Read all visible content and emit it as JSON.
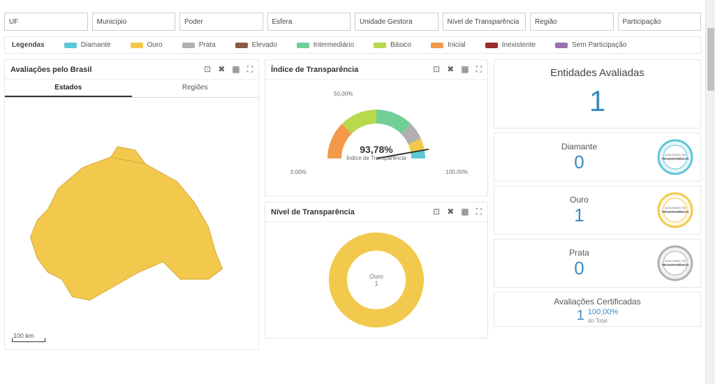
{
  "filters": [
    {
      "label": "UF"
    },
    {
      "label": "Município"
    },
    {
      "label": "Poder"
    },
    {
      "label": "Esfera"
    },
    {
      "label": "Unidade Gestora"
    },
    {
      "label": "Nível de Transparência"
    },
    {
      "label": "Região"
    },
    {
      "label": "Participação"
    }
  ],
  "legend": {
    "title": "Legendas",
    "items": [
      {
        "label": "Diamante",
        "color": "#5bc8d6"
      },
      {
        "label": "Ouro",
        "color": "#f2c94c"
      },
      {
        "label": "Prata",
        "color": "#b0b0b0"
      },
      {
        "label": "Elevado",
        "color": "#8b5a44"
      },
      {
        "label": "Intermediário",
        "color": "#6fcf97"
      },
      {
        "label": "Básico",
        "color": "#b8d94a"
      },
      {
        "label": "Inicial",
        "color": "#f2994a"
      },
      {
        "label": "Inexistente",
        "color": "#9b2c2c"
      },
      {
        "label": "Sem Participação",
        "color": "#9b6fb0"
      }
    ]
  },
  "map": {
    "title": "Avaliações pelo Brasil",
    "tabs": [
      "Estados",
      "Regiões"
    ],
    "active_tab": 0,
    "region_color": "#f2c94c",
    "scalebar": "100 km"
  },
  "gauge": {
    "title": "Índice de Transparência",
    "value_text": "93,78%",
    "subtitle": "Índice de Transparência",
    "min_label": "0,00%",
    "mid_label": "50,00%",
    "max_label": "100,00%",
    "segments": [
      {
        "color": "#f2994a",
        "start": 180,
        "end": 225
      },
      {
        "color": "#b8d94a",
        "start": 225,
        "end": 270
      },
      {
        "color": "#6fcf97",
        "start": 270,
        "end": 315
      },
      {
        "color": "#b0b0b0",
        "start": 315,
        "end": 336
      },
      {
        "color": "#f2c94c",
        "start": 336,
        "end": 350
      },
      {
        "color": "#5bc8d6",
        "start": 350,
        "end": 360
      }
    ],
    "needle_color": "#333333"
  },
  "donut": {
    "title": "Nível de Transparência",
    "center_label": "Ouro",
    "center_count": "1",
    "color": "#f2c94c"
  },
  "stats": {
    "header_title": "Entidades Avaliadas",
    "header_value": "1",
    "rows": [
      {
        "label": "Diamante",
        "value": "0",
        "badge_color": "#5bc8d6"
      },
      {
        "label": "Ouro",
        "value": "1",
        "badge_color": "#f2c94c"
      },
      {
        "label": "Prata",
        "value": "0",
        "badge_color": "#b0b0b0"
      }
    ],
    "cert": {
      "title": "Avaliações Certificadas",
      "value": "1",
      "pct": "100,00%",
      "sub": "do Total"
    }
  },
  "actions": {
    "image": "⊡",
    "close": "✖",
    "table": "▦",
    "expand": "⛶"
  }
}
